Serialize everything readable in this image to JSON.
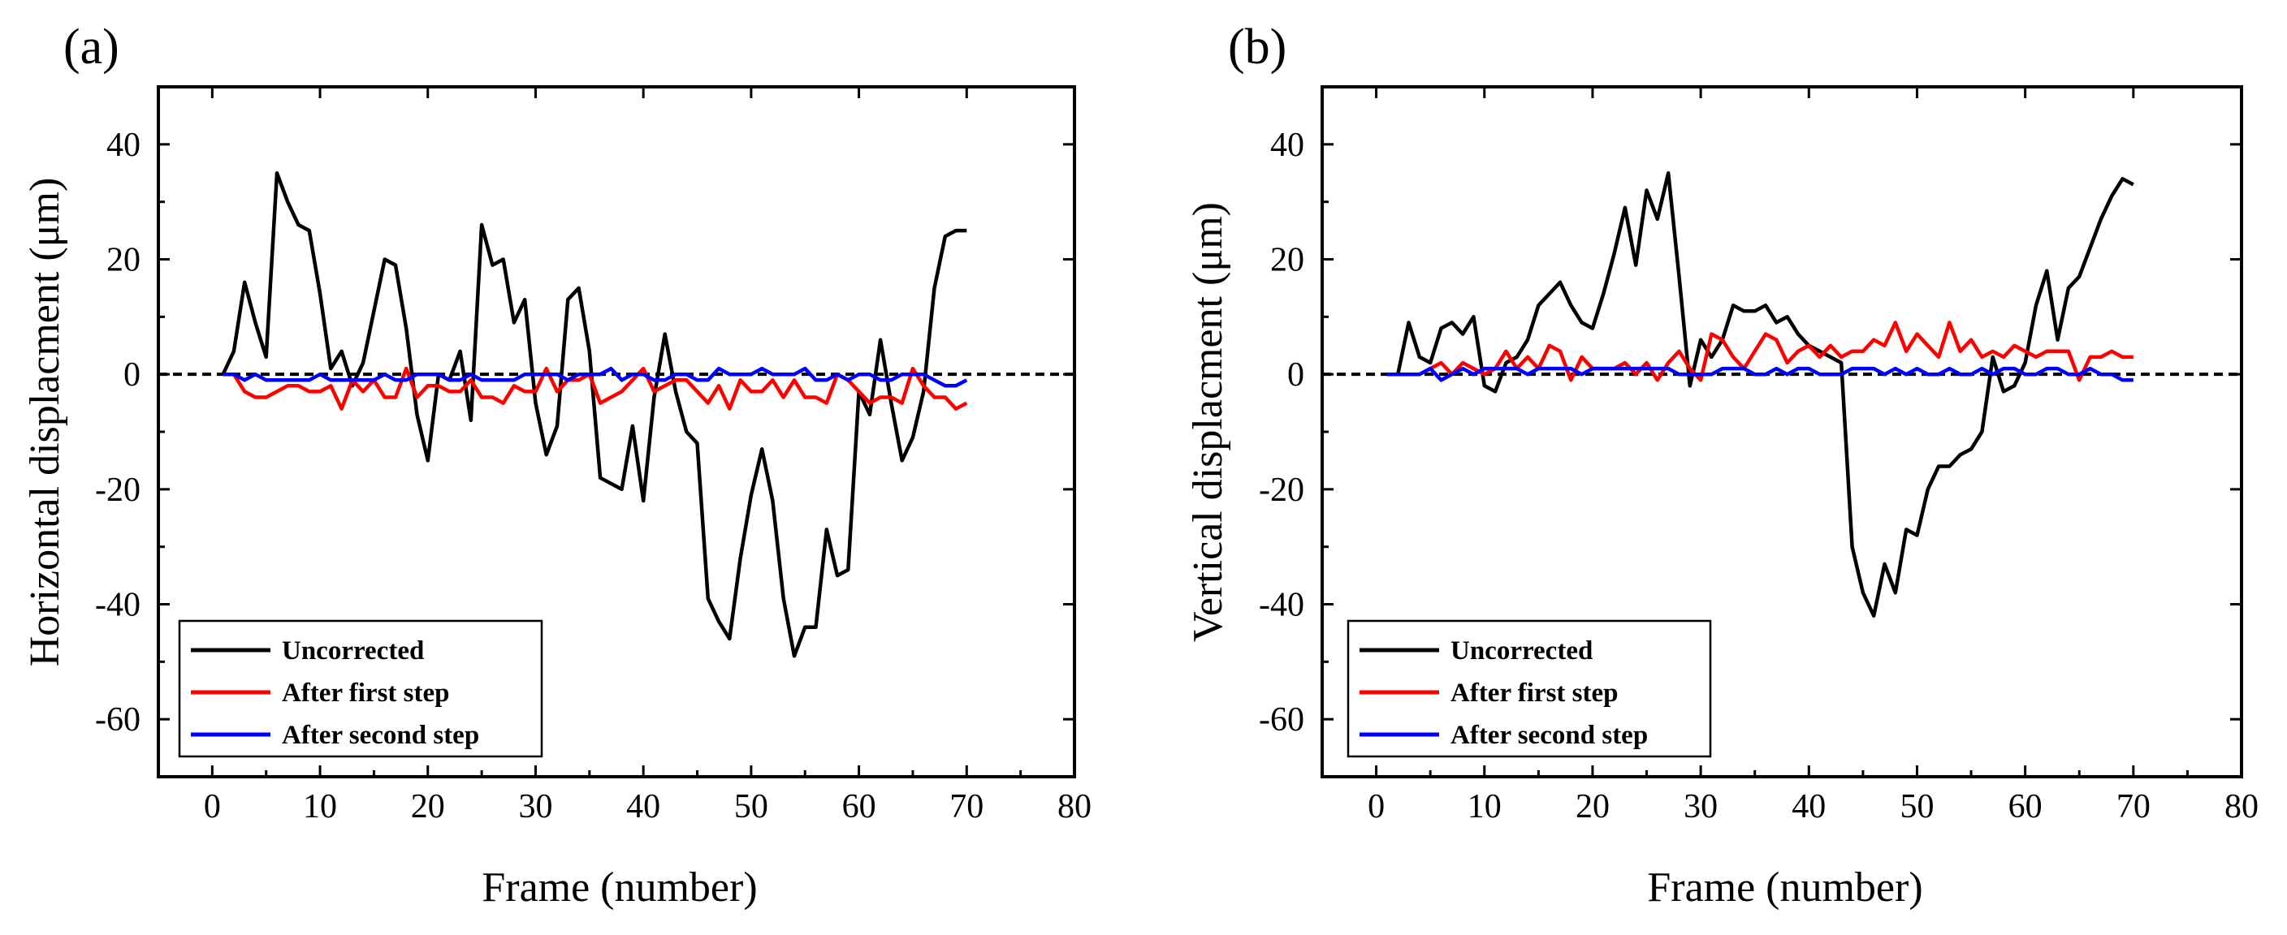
{
  "chart_data": [
    {
      "type": "line",
      "panel_label": "(a)",
      "xlabel": "Frame (number)",
      "ylabel": "Horizontal displacment (μm)",
      "xlim": [
        -5,
        80
      ],
      "ylim": [
        -70,
        50
      ],
      "xticks": [
        0,
        10,
        20,
        30,
        40,
        50,
        60,
        70,
        80
      ],
      "yticks": [
        -60,
        -40,
        -20,
        0,
        20,
        40
      ],
      "xtick_labels": [
        "0",
        "10",
        "20",
        "30",
        "40",
        "50",
        "60",
        "70",
        "80"
      ],
      "ytick_labels": [
        "-60",
        "-40",
        "-20",
        "0",
        "20",
        "40"
      ],
      "zero_line": "dashed",
      "legend_position": "bottom-left",
      "x": [
        1,
        2,
        3,
        4,
        5,
        6,
        7,
        8,
        9,
        10,
        11,
        12,
        13,
        14,
        15,
        16,
        17,
        18,
        19,
        20,
        21,
        22,
        23,
        24,
        25,
        26,
        27,
        28,
        29,
        30,
        31,
        32,
        33,
        34,
        35,
        36,
        37,
        38,
        39,
        40,
        41,
        42,
        43,
        44,
        45,
        46,
        47,
        48,
        49,
        50,
        51,
        52,
        53,
        54,
        55,
        56,
        57,
        58,
        59,
        60,
        61,
        62,
        63,
        64,
        65,
        66,
        67,
        68,
        69,
        70
      ],
      "series": [
        {
          "name": "Uncorrected",
          "color": "#000000",
          "values": [
            0,
            4,
            16,
            9,
            3,
            35,
            30,
            26,
            25,
            14,
            1,
            4,
            -2,
            2,
            11,
            20,
            19,
            8,
            -7,
            -15,
            0,
            -1,
            4,
            -8,
            26,
            19,
            20,
            9,
            13,
            -5,
            -14,
            -9,
            13,
            15,
            4,
            -18,
            -19,
            -20,
            -9,
            -22,
            -4,
            7,
            -3,
            -10,
            -12,
            -39,
            -43,
            -46,
            -32,
            -21,
            -13,
            -22,
            -39,
            -49,
            -44,
            -44,
            -27,
            -35,
            -34,
            -3,
            -7,
            6,
            -5,
            -15,
            -11,
            -3,
            15,
            24,
            25,
            25
          ]
        },
        {
          "name": "After first step",
          "color": "#ff0000",
          "values": [
            0,
            0,
            -3,
            -4,
            -4,
            -3,
            -2,
            -2,
            -3,
            -3,
            -2,
            -6,
            -1,
            -3,
            -1,
            -4,
            -4,
            1,
            -4,
            -2,
            -2,
            -3,
            -3,
            -1,
            -4,
            -4,
            -5,
            -2,
            -3,
            -3,
            1,
            -3,
            -1,
            -1,
            0,
            -5,
            -4,
            -3,
            -1,
            1,
            -3,
            -2,
            -1,
            -1,
            -3,
            -5,
            -2,
            -6,
            -1,
            -3,
            -3,
            -1,
            -4,
            -1,
            -4,
            -4,
            -5,
            0,
            -1,
            -3,
            -5,
            -4,
            -4,
            -5,
            1,
            -2,
            -4,
            -4,
            -6,
            -5
          ]
        },
        {
          "name": "After second step",
          "color": "#0000ff",
          "values": [
            0,
            0,
            -1,
            0,
            -1,
            -1,
            -1,
            -1,
            -1,
            0,
            -1,
            -1,
            -1,
            -1,
            -1,
            0,
            -1,
            -1,
            0,
            0,
            0,
            -1,
            -1,
            0,
            -1,
            -1,
            -1,
            -1,
            0,
            0,
            0,
            0,
            -1,
            0,
            0,
            0,
            1,
            -1,
            0,
            0,
            -1,
            -1,
            0,
            0,
            -1,
            -1,
            1,
            0,
            0,
            0,
            1,
            0,
            0,
            0,
            1,
            -1,
            -1,
            0,
            -1,
            0,
            0,
            -1,
            -1,
            0,
            0,
            0,
            -1,
            -2,
            -2,
            -1
          ]
        }
      ]
    },
    {
      "type": "line",
      "panel_label": "(b)",
      "xlabel": "Frame (number)",
      "ylabel": "Vertical displacment (μm)",
      "xlim": [
        -5,
        80
      ],
      "ylim": [
        -70,
        50
      ],
      "xticks": [
        0,
        10,
        20,
        30,
        40,
        50,
        60,
        70,
        80
      ],
      "yticks": [
        -60,
        -40,
        -20,
        0,
        20,
        40
      ],
      "xtick_labels": [
        "0",
        "10",
        "20",
        "30",
        "40",
        "50",
        "60",
        "70",
        "80"
      ],
      "ytick_labels": [
        "-60",
        "-40",
        "-20",
        "0",
        "20",
        "40"
      ],
      "zero_line": "dashed",
      "legend_position": "bottom-left",
      "x": [
        1,
        2,
        3,
        4,
        5,
        6,
        7,
        8,
        9,
        10,
        11,
        12,
        13,
        14,
        15,
        16,
        17,
        18,
        19,
        20,
        21,
        22,
        23,
        24,
        25,
        26,
        27,
        28,
        29,
        30,
        31,
        32,
        33,
        34,
        35,
        36,
        37,
        38,
        39,
        40,
        41,
        42,
        43,
        44,
        45,
        46,
        47,
        48,
        49,
        50,
        51,
        52,
        53,
        54,
        55,
        56,
        57,
        58,
        59,
        60,
        61,
        62,
        63,
        64,
        65,
        66,
        67,
        68,
        69,
        70
      ],
      "series": [
        {
          "name": "Uncorrected",
          "color": "#000000",
          "values": [
            0,
            0,
            9,
            3,
            2,
            8,
            9,
            7,
            10,
            -2,
            -3,
            2,
            3,
            6,
            12,
            14,
            16,
            12,
            9,
            8,
            14,
            21,
            29,
            19,
            32,
            27,
            35,
            17,
            -2,
            6,
            3,
            6,
            12,
            11,
            11,
            12,
            9,
            10,
            7,
            5,
            4,
            3,
            2,
            -30,
            -38,
            -42,
            -33,
            -38,
            -27,
            -28,
            -20,
            -16,
            -16,
            -14,
            -13,
            -10,
            3,
            -3,
            -2,
            2,
            12,
            18,
            6,
            15,
            17,
            22,
            27,
            31,
            34,
            33
          ]
        },
        {
          "name": "After first step",
          "color": "#ff0000",
          "values": [
            0,
            0,
            0,
            0,
            1,
            2,
            0,
            2,
            1,
            0,
            1,
            4,
            1,
            3,
            1,
            5,
            4,
            -1,
            3,
            1,
            1,
            1,
            2,
            0,
            2,
            -1,
            2,
            4,
            1,
            -1,
            7,
            6,
            3,
            1,
            4,
            7,
            6,
            2,
            4,
            5,
            3,
            5,
            3,
            4,
            4,
            6,
            5,
            9,
            4,
            7,
            5,
            3,
            9,
            4,
            6,
            3,
            4,
            3,
            5,
            4,
            3,
            4,
            4,
            4,
            -1,
            3,
            3,
            4,
            3,
            3
          ]
        },
        {
          "name": "After second step",
          "color": "#0000ff",
          "values": [
            0,
            0,
            0,
            0,
            1,
            -1,
            0,
            1,
            0,
            1,
            1,
            1,
            1,
            0,
            1,
            1,
            1,
            1,
            0,
            1,
            1,
            1,
            1,
            1,
            1,
            1,
            1,
            0,
            0,
            0,
            0,
            1,
            1,
            1,
            0,
            0,
            1,
            0,
            1,
            1,
            0,
            0,
            0,
            1,
            1,
            1,
            0,
            1,
            0,
            1,
            0,
            0,
            1,
            0,
            0,
            1,
            0,
            1,
            1,
            0,
            0,
            1,
            1,
            0,
            0,
            1,
            0,
            0,
            -1,
            -1
          ]
        }
      ]
    }
  ]
}
